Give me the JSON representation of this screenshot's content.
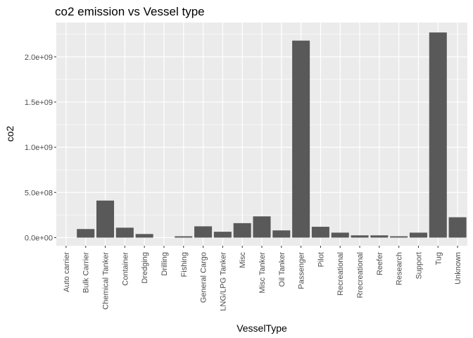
{
  "chart_data": {
    "type": "bar",
    "title": "co2 emission vs Vessel type",
    "xlabel": "VesselType",
    "ylabel": "co2",
    "categories": [
      "Auto carrier",
      "Bulk Carrier",
      "Chemical Tanker",
      "Container",
      "Dredging",
      "Drilling",
      "Fishing",
      "General Cargo",
      "LNG/LPG Tanker",
      "Misc",
      "Misc Tanker",
      "Oil Tanker",
      "Passenger",
      "Pilot",
      "Recreational",
      "Rrecreational",
      "Reefer",
      "Research",
      "Support",
      "Tug",
      "Unknown"
    ],
    "values": [
      0,
      95000000,
      410000000,
      110000000,
      40000000,
      0,
      15000000,
      125000000,
      65000000,
      160000000,
      235000000,
      80000000,
      2180000000,
      120000000,
      55000000,
      25000000,
      25000000,
      15000000,
      55000000,
      2270000000,
      225000000
    ],
    "yticks": [
      0,
      500000000,
      1000000000,
      1500000000,
      2000000000
    ],
    "ytick_labels": [
      "0.0e+00",
      "5.0e+08",
      "1.0e+09",
      "1.5e+09",
      "2.0e+09"
    ],
    "ylim": [
      -90000000,
      2380000000
    ],
    "grid": true,
    "colors": {
      "panel": "#ebebeb",
      "grid": "#ffffff",
      "bar": "#595959",
      "tick": "#4d4d4d",
      "text": "#000000"
    }
  }
}
